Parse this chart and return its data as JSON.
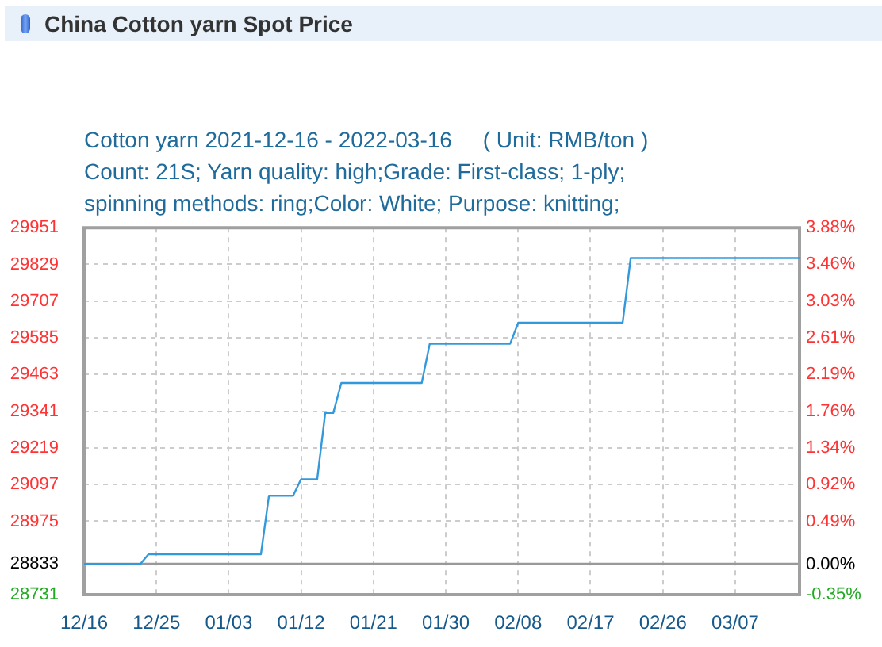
{
  "chart_data": {
    "type": "line",
    "title": "China Cotton yarn Spot Price",
    "subtitle": "Cotton yarn 2021-12-16 - 2022-03-16     ( Unit: RMB/ton )\nCount: 21S; Yarn quality: high;Grade: First-class; 1-ply;\nspinning methods: ring;Color: White; Purpose: knitting;",
    "x": [
      "2021-12-16",
      "2021-12-23",
      "2021-12-24",
      "2022-01-07",
      "2022-01-08",
      "2022-01-11",
      "2022-01-12",
      "2022-01-14",
      "2022-01-15",
      "2022-01-16",
      "2022-01-17",
      "2022-01-27",
      "2022-01-28",
      "2022-02-07",
      "2022-02-08",
      "2022-02-21",
      "2022-02-22",
      "2022-03-15"
    ],
    "values": [
      28833,
      28833,
      28865,
      28865,
      29060,
      29060,
      29115,
      29115,
      29335,
      29335,
      29435,
      29435,
      29565,
      29565,
      29635,
      29635,
      29850,
      29850
    ],
    "color": "#3399dd",
    "xlim": [
      "2021-12-16",
      "2022-03-15"
    ],
    "xticks": [
      {
        "value": "2021-12-16",
        "label": "12/16"
      },
      {
        "value": "2021-12-25",
        "label": "12/25"
      },
      {
        "value": "2022-01-03",
        "label": "01/03"
      },
      {
        "value": "2022-01-12",
        "label": "01/12"
      },
      {
        "value": "2022-01-21",
        "label": "01/21"
      },
      {
        "value": "2022-01-30",
        "label": "01/30"
      },
      {
        "value": "2022-02-08",
        "label": "02/08"
      },
      {
        "value": "2022-02-17",
        "label": "02/17"
      },
      {
        "value": "2022-02-26",
        "label": "02/26"
      },
      {
        "value": "2022-03-07",
        "label": "03/07"
      }
    ],
    "ylim": [
      28731,
      29951
    ],
    "yticks": [
      28731,
      28833,
      28975,
      29097,
      29219,
      29341,
      29463,
      29585,
      29707,
      29829,
      29951
    ],
    "y2lim": [
      -0.35,
      3.88
    ],
    "y2ticks": [
      {
        "value": -0.35,
        "label": "-0.35%"
      },
      {
        "value": 0,
        "label": "0.00%"
      },
      {
        "value": 0.49,
        "label": "0.49%"
      },
      {
        "value": 0.92,
        "label": "0.92%"
      },
      {
        "value": 1.34,
        "label": "1.34%"
      },
      {
        "value": 1.76,
        "label": "1.76%"
      },
      {
        "value": 2.19,
        "label": "2.19%"
      },
      {
        "value": 2.61,
        "label": "2.61%"
      },
      {
        "value": 3.03,
        "label": "3.03%"
      },
      {
        "value": 3.46,
        "label": "3.46%"
      },
      {
        "value": 3.88,
        "label": "3.88%"
      }
    ],
    "ref_lines": [
      {
        "axis": "y",
        "value": 28833,
        "color": "#999999"
      }
    ],
    "grid": true,
    "legend": false,
    "marker": "none"
  }
}
